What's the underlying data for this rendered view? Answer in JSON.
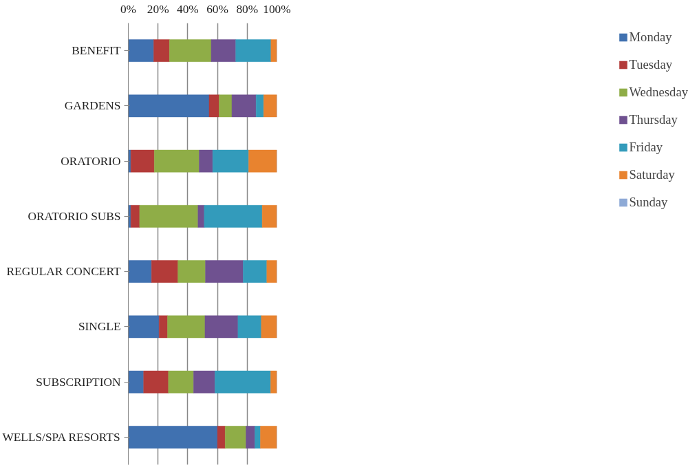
{
  "chart_data": {
    "type": "bar",
    "orientation": "horizontal",
    "stacked": true,
    "categories": [
      "BENEFIT",
      "GARDENS",
      "ORATORIO",
      "ORATORIO SUBS",
      "REGULAR CONCERT",
      "SINGLE",
      "SUBSCRIPTION",
      "WELLS/SPA RESORTS"
    ],
    "series": [
      {
        "name": "Monday",
        "color": "#4071b0",
        "values": [
          17.1,
          54.4,
          1.7,
          1.7,
          15.6,
          20.7,
          10.3,
          60.0
        ]
      },
      {
        "name": "Tuesday",
        "color": "#b33b39",
        "values": [
          10.6,
          6.7,
          15.8,
          5.9,
          17.8,
          5.7,
          16.7,
          5.2
        ]
      },
      {
        "name": "Wednesday",
        "color": "#8fad47",
        "values": [
          28.1,
          8.6,
          30.2,
          39.3,
          18.5,
          25.2,
          16.9,
          14.0
        ]
      },
      {
        "name": "Thursday",
        "color": "#6f5190",
        "values": [
          16.5,
          16.3,
          9.1,
          4.2,
          25.4,
          22.2,
          14.4,
          6.0
        ]
      },
      {
        "name": "Friday",
        "color": "#339bbb",
        "values": [
          23.7,
          5.1,
          24.2,
          39.0,
          15.9,
          15.7,
          37.5,
          3.7
        ]
      },
      {
        "name": "Saturday",
        "color": "#e8832f",
        "values": [
          4.0,
          8.9,
          19.0,
          9.9,
          6.8,
          10.5,
          4.2,
          11.1
        ]
      },
      {
        "name": "Sunday",
        "color": "#8eaad6",
        "values": [
          0,
          0,
          0,
          0,
          0,
          0,
          0,
          0
        ]
      }
    ],
    "xlim": [
      0,
      100
    ],
    "xticks": [
      {
        "value": 0,
        "label": "0%"
      },
      {
        "value": 20,
        "label": "20%"
      },
      {
        "value": 40,
        "label": "40%"
      },
      {
        "value": 60,
        "label": "60%"
      },
      {
        "value": 80,
        "label": "80%"
      },
      {
        "value": 100,
        "label": "100%"
      }
    ],
    "grid": "x",
    "legend": "right"
  }
}
